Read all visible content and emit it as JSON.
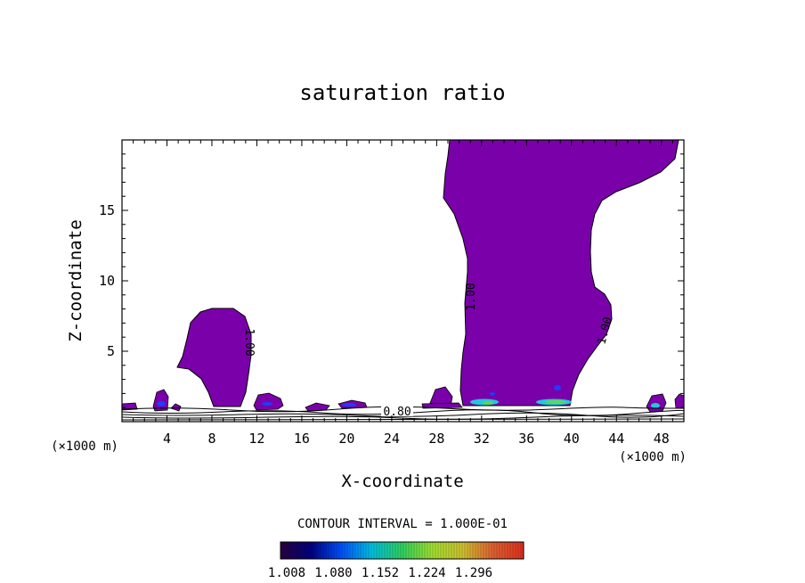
{
  "chart_data": {
    "type": "contour",
    "title": "saturation ratio",
    "xlabel": "X-coordinate",
    "ylabel": "Z-coordinate",
    "x_unit_left": "(×1000 m)",
    "x_unit_right": "(×1000 m)",
    "xlim": [
      0,
      50
    ],
    "ylim": [
      0,
      20
    ],
    "x_ticks": [
      4,
      8,
      12,
      16,
      20,
      24,
      28,
      32,
      36,
      40,
      44,
      48
    ],
    "y_ticks": [
      5,
      10,
      15
    ],
    "contour_labels": [
      "1.00",
      "1.00",
      "1.00",
      "0.80"
    ],
    "contour_interval_text": "CONTOUR INTERVAL = 1.000E-01",
    "colorbar": {
      "ticks": [
        "1.008",
        "1.080",
        "1.152",
        "1.224",
        "1.296"
      ],
      "colors": [
        "#2a003f",
        "#000080",
        "#0050ff",
        "#00c0e0",
        "#30d060",
        "#a0e030",
        "#d0c030",
        "#e06030",
        "#e03020"
      ]
    },
    "colors": {
      "fill": "#7a00aa",
      "core_blue": "#1f3cff",
      "core_cyan": "#22c8d8",
      "core_green": "#5bd85b"
    }
  }
}
